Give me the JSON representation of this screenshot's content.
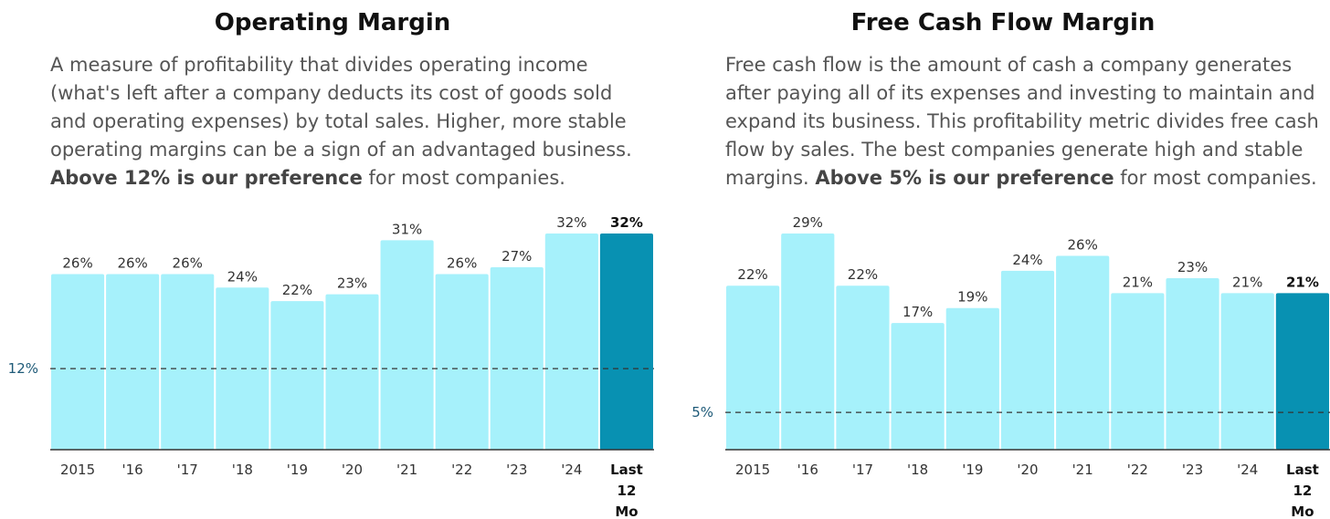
{
  "panels": [
    {
      "title": "Operating Margin",
      "description": {
        "text": "A measure of profitability that divides operating income (what's left after a company deducts its cost of goods sold and operating expenses) by total sales. Higher, more stable operating margins can be a sign of an advantaged business.",
        "bold": "Above 12% is our preference",
        "suffix": " for most companies."
      }
    },
    {
      "title": "Free Cash Flow Margin",
      "description": {
        "text": "Free cash flow is the amount of cash a company generates after paying all of its expenses and investing to maintain and expand its business. This profitability metric divides free cash flow by sales. The best companies generate high and stable margins.",
        "bold": "Above 5% is our preference",
        "suffix": " for most companies."
      }
    }
  ],
  "colors": {
    "bar": "#a6f1fb",
    "highlight": "#0891b2",
    "threshold_label": "#1e5a78"
  },
  "chart_data": [
    {
      "type": "bar",
      "title": "Operating Margin",
      "categories": [
        "2015",
        "'16",
        "'17",
        "'18",
        "'19",
        "'20",
        "'21",
        "'22",
        "'23",
        "'24",
        "Last 12 Mo"
      ],
      "values": [
        26,
        26,
        26,
        24,
        22,
        23,
        31,
        26,
        27,
        32,
        32
      ],
      "data_labels": [
        "26%",
        "26%",
        "26%",
        "24%",
        "22%",
        "23%",
        "31%",
        "26%",
        "27%",
        "32%",
        "32%"
      ],
      "highlight_index": 10,
      "threshold": 12,
      "threshold_label": "12%",
      "ylim": [
        0,
        32
      ]
    },
    {
      "type": "bar",
      "title": "Free Cash Flow Margin",
      "categories": [
        "2015",
        "'16",
        "'17",
        "'18",
        "'19",
        "'20",
        "'21",
        "'22",
        "'23",
        "'24",
        "Last 12 Mo"
      ],
      "values": [
        22,
        29,
        22,
        17,
        19,
        24,
        26,
        21,
        23,
        21,
        21
      ],
      "data_labels": [
        "22%",
        "29%",
        "22%",
        "17%",
        "19%",
        "24%",
        "26%",
        "21%",
        "23%",
        "21%",
        "21%"
      ],
      "highlight_index": 10,
      "threshold": 5,
      "threshold_label": "5%",
      "ylim": [
        0,
        29
      ]
    }
  ]
}
